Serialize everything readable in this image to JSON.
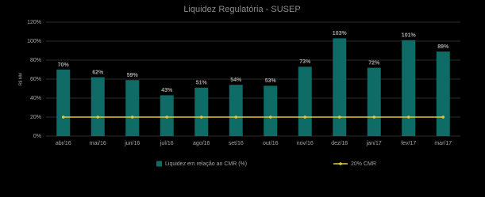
{
  "chart_data": {
    "type": "bar",
    "title": "Liquidez Regulatória - SUSEP",
    "y_label": "R$ MM",
    "categories": [
      "abr/16",
      "mai/16",
      "jun/16",
      "jul/16",
      "ago/16",
      "set/16",
      "out/16",
      "nov/16",
      "dez/16",
      "jan/17",
      "fev/17",
      "mar/17"
    ],
    "series": [
      {
        "name": "Liquidez em relação ao CMR (%)",
        "type": "bar",
        "color": "#0e6b66",
        "values": [
          70,
          62,
          59,
          43,
          51,
          54,
          53,
          73,
          103,
          72,
          101,
          89
        ],
        "value_labels": [
          "70%",
          "62%",
          "59%",
          "43%",
          "51%",
          "54%",
          "53%",
          "73%",
          "103%",
          "72%",
          "101%",
          "89%"
        ]
      },
      {
        "name": "20% CMR",
        "type": "line",
        "color": "#e6c73a",
        "values": [
          20,
          20,
          20,
          20,
          20,
          20,
          20,
          20,
          20,
          20,
          20,
          20
        ]
      }
    ],
    "ylim": [
      0,
      120
    ],
    "yticks": [
      {
        "value": 0,
        "label": "0%"
      },
      {
        "value": 20,
        "label": "20%"
      },
      {
        "value": 40,
        "label": "40%"
      },
      {
        "value": 60,
        "label": "60%"
      },
      {
        "value": 80,
        "label": "80%"
      },
      {
        "value": 100,
        "label": "100%"
      },
      {
        "value": 120,
        "label": "120%"
      }
    ],
    "grid": true,
    "legend": "bottom"
  }
}
